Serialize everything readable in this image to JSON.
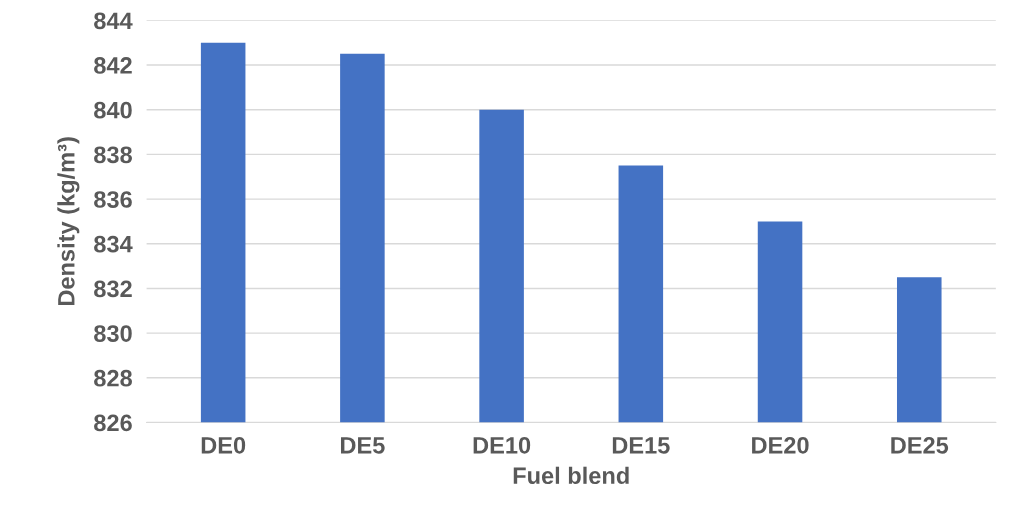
{
  "chart_data": {
    "type": "bar",
    "xlabel": "Fuel blend",
    "ylabel": "Density (kg/m³)",
    "categories": [
      "DE0",
      "DE5",
      "DE10",
      "DE15",
      "DE20",
      "DE25"
    ],
    "values": [
      843,
      842.5,
      840,
      837.5,
      835,
      832.5
    ],
    "color": "#4472c4",
    "ylim": [
      826,
      844
    ],
    "yticks": [
      826,
      828,
      830,
      832,
      834,
      836,
      838,
      840,
      842,
      844
    ],
    "grid": "y"
  }
}
